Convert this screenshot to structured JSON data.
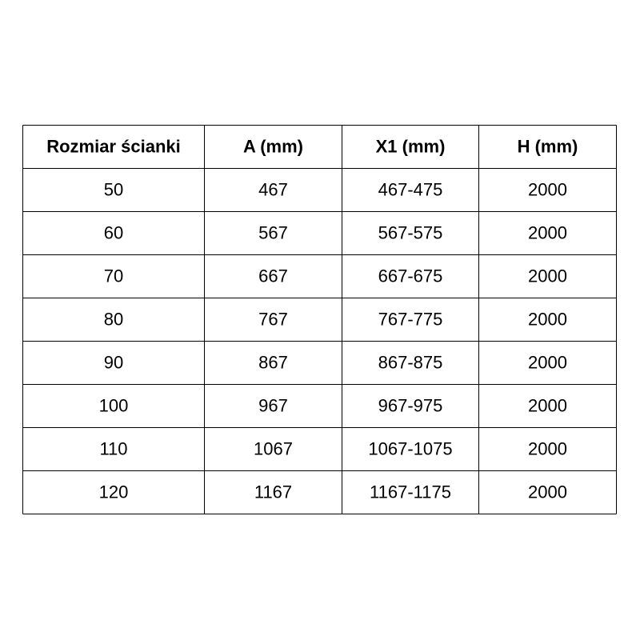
{
  "table": {
    "header": [
      "Rozmiar ścianki",
      "A (mm)",
      "X1 (mm)",
      "H (mm)"
    ],
    "rows": [
      [
        "50",
        "467",
        "467-475",
        "2000"
      ],
      [
        "60",
        "567",
        "567-575",
        "2000"
      ],
      [
        "70",
        "667",
        "667-675",
        "2000"
      ],
      [
        "80",
        "767",
        "767-775",
        "2000"
      ],
      [
        "90",
        "867",
        "867-875",
        "2000"
      ],
      [
        "100",
        "967",
        "967-975",
        "2000"
      ],
      [
        "110",
        "1067",
        "1067-1075",
        "2000"
      ],
      [
        "120",
        "1167",
        "1167-1175",
        "2000"
      ]
    ]
  }
}
